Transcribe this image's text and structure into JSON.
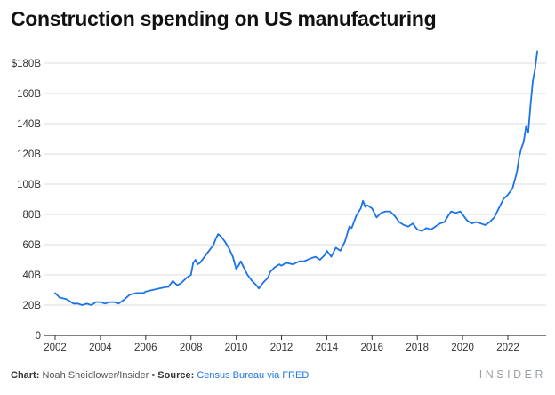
{
  "chart_data": {
    "type": "line",
    "title": "Construction spending on US manufacturing",
    "xlabel": "",
    "ylabel": "",
    "xlim": [
      2002,
      2023.4
    ],
    "ylim": [
      0,
      190
    ],
    "x_ticks": [
      2002,
      2004,
      2006,
      2008,
      2010,
      2012,
      2014,
      2016,
      2018,
      2020,
      2022
    ],
    "x_tick_labels": [
      "2002",
      "2004",
      "2006",
      "2008",
      "2010",
      "2012",
      "2014",
      "2016",
      "2018",
      "2020",
      "2022"
    ],
    "y_ticks": [
      0,
      20,
      40,
      60,
      80,
      100,
      120,
      140,
      160,
      180
    ],
    "y_tick_labels": [
      "0",
      "20B",
      "40B",
      "60B",
      "80B",
      "100B",
      "120B",
      "140B",
      "160B",
      "180B"
    ],
    "y_top_label": "$180B",
    "grid": true,
    "color": "#1a73e8",
    "series": [
      {
        "values": [
          [
            2002.0,
            28
          ],
          [
            2002.2,
            25
          ],
          [
            2002.5,
            24
          ],
          [
            2002.8,
            21
          ],
          [
            2003.0,
            21
          ],
          [
            2003.2,
            20
          ],
          [
            2003.4,
            21
          ],
          [
            2003.6,
            20
          ],
          [
            2003.8,
            22
          ],
          [
            2004.0,
            22
          ],
          [
            2004.2,
            21
          ],
          [
            2004.4,
            22
          ],
          [
            2004.6,
            22
          ],
          [
            2004.8,
            21
          ],
          [
            2005.0,
            23
          ],
          [
            2005.3,
            27
          ],
          [
            2005.6,
            28
          ],
          [
            2005.9,
            28
          ],
          [
            2006.0,
            29
          ],
          [
            2006.3,
            30
          ],
          [
            2006.6,
            31
          ],
          [
            2006.9,
            32
          ],
          [
            2007.0,
            32
          ],
          [
            2007.2,
            36
          ],
          [
            2007.4,
            33
          ],
          [
            2007.6,
            35
          ],
          [
            2007.8,
            38
          ],
          [
            2008.0,
            40
          ],
          [
            2008.1,
            48
          ],
          [
            2008.2,
            50
          ],
          [
            2008.3,
            47
          ],
          [
            2008.4,
            48
          ],
          [
            2008.6,
            52
          ],
          [
            2008.8,
            56
          ],
          [
            2009.0,
            60
          ],
          [
            2009.1,
            64
          ],
          [
            2009.2,
            67
          ],
          [
            2009.35,
            65
          ],
          [
            2009.5,
            62
          ],
          [
            2009.7,
            57
          ],
          [
            2009.85,
            52
          ],
          [
            2010.0,
            44
          ],
          [
            2010.1,
            46
          ],
          [
            2010.2,
            49
          ],
          [
            2010.3,
            46
          ],
          [
            2010.5,
            40
          ],
          [
            2010.7,
            36
          ],
          [
            2010.9,
            33
          ],
          [
            2011.0,
            31
          ],
          [
            2011.2,
            35
          ],
          [
            2011.4,
            38
          ],
          [
            2011.5,
            42
          ],
          [
            2011.7,
            45
          ],
          [
            2011.9,
            47
          ],
          [
            2012.0,
            46
          ],
          [
            2012.2,
            48
          ],
          [
            2012.5,
            47
          ],
          [
            2012.8,
            49
          ],
          [
            2013.0,
            49
          ],
          [
            2013.3,
            51
          ],
          [
            2013.5,
            52
          ],
          [
            2013.7,
            50
          ],
          [
            2013.9,
            53
          ],
          [
            2014.0,
            56
          ],
          [
            2014.2,
            52
          ],
          [
            2014.4,
            58
          ],
          [
            2014.5,
            57
          ],
          [
            2014.6,
            56
          ],
          [
            2014.8,
            62
          ],
          [
            2015.0,
            72
          ],
          [
            2015.1,
            71
          ],
          [
            2015.3,
            79
          ],
          [
            2015.5,
            84
          ],
          [
            2015.6,
            89
          ],
          [
            2015.7,
            85
          ],
          [
            2015.8,
            86
          ],
          [
            2016.0,
            84
          ],
          [
            2016.2,
            78
          ],
          [
            2016.4,
            81
          ],
          [
            2016.6,
            82
          ],
          [
            2016.8,
            82
          ],
          [
            2017.0,
            79
          ],
          [
            2017.2,
            75
          ],
          [
            2017.4,
            73
          ],
          [
            2017.6,
            72
          ],
          [
            2017.8,
            74
          ],
          [
            2018.0,
            70
          ],
          [
            2018.2,
            69
          ],
          [
            2018.4,
            71
          ],
          [
            2018.6,
            70
          ],
          [
            2018.8,
            72
          ],
          [
            2019.0,
            74
          ],
          [
            2019.2,
            75
          ],
          [
            2019.4,
            80
          ],
          [
            2019.5,
            82
          ],
          [
            2019.7,
            81
          ],
          [
            2019.9,
            82
          ],
          [
            2020.0,
            80
          ],
          [
            2020.2,
            76
          ],
          [
            2020.4,
            74
          ],
          [
            2020.6,
            75
          ],
          [
            2020.8,
            74
          ],
          [
            2021.0,
            73
          ],
          [
            2021.2,
            75
          ],
          [
            2021.4,
            78
          ],
          [
            2021.6,
            84
          ],
          [
            2021.8,
            90
          ],
          [
            2022.0,
            93
          ],
          [
            2022.2,
            97
          ],
          [
            2022.4,
            108
          ],
          [
            2022.5,
            118
          ],
          [
            2022.6,
            124
          ],
          [
            2022.7,
            128
          ],
          [
            2022.8,
            138
          ],
          [
            2022.9,
            134
          ],
          [
            2023.0,
            152
          ],
          [
            2023.1,
            168
          ],
          [
            2023.2,
            176
          ],
          [
            2023.3,
            188
          ]
        ]
      }
    ],
    "footer": {
      "chart_label": "Chart:",
      "chart_author": "Noah Sheidlower/Insider",
      "separator": "•",
      "source_label": "Source:",
      "source_name": "Census Bureau via FRED"
    },
    "brand": "INSIDER"
  }
}
